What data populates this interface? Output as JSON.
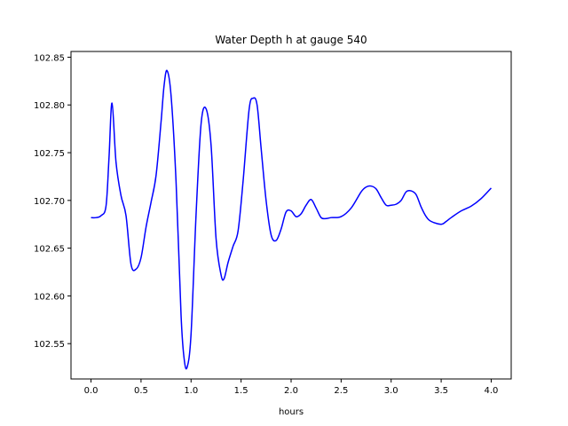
{
  "chart_data": {
    "type": "line",
    "title": "Water Depth h at gauge 540",
    "xlabel": "hours",
    "ylabel": "",
    "xlim": [
      -0.2,
      4.2
    ],
    "ylim": [
      102.513,
      102.856
    ],
    "grid": false,
    "legend": "none",
    "x_ticks": [
      "0.0",
      "0.5",
      "1.0",
      "1.5",
      "2.0",
      "2.5",
      "3.0",
      "3.5",
      "4.0"
    ],
    "y_ticks": [
      "102.55",
      "102.60",
      "102.65",
      "102.70",
      "102.75",
      "102.80",
      "102.85"
    ],
    "series": [
      {
        "color": "#0000ff",
        "x": [
          0.0,
          0.05,
          0.1,
          0.15,
          0.18,
          0.21,
          0.25,
          0.3,
          0.35,
          0.4,
          0.45,
          0.5,
          0.55,
          0.6,
          0.65,
          0.7,
          0.73,
          0.76,
          0.8,
          0.85,
          0.9,
          0.93,
          0.96,
          1.0,
          1.05,
          1.1,
          1.15,
          1.2,
          1.25,
          1.3,
          1.33,
          1.37,
          1.42,
          1.47,
          1.52,
          1.58,
          1.62,
          1.66,
          1.7,
          1.75,
          1.8,
          1.85,
          1.9,
          1.95,
          2.0,
          2.05,
          2.1,
          2.15,
          2.2,
          2.25,
          2.3,
          2.35,
          2.4,
          2.5,
          2.6,
          2.7,
          2.75,
          2.8,
          2.85,
          2.9,
          2.95,
          3.0,
          3.05,
          3.1,
          3.15,
          3.2,
          3.25,
          3.3,
          3.35,
          3.4,
          3.5,
          3.55,
          3.6,
          3.7,
          3.8,
          3.9,
          4.0
        ],
        "y": [
          102.682,
          102.682,
          102.684,
          102.694,
          102.745,
          102.802,
          102.74,
          102.705,
          102.684,
          102.633,
          102.628,
          102.64,
          102.672,
          102.698,
          102.726,
          102.782,
          102.82,
          102.836,
          102.81,
          102.72,
          102.58,
          102.535,
          102.525,
          102.56,
          102.685,
          102.78,
          102.796,
          102.758,
          102.66,
          102.622,
          102.618,
          102.635,
          102.652,
          102.668,
          102.72,
          102.795,
          102.807,
          102.8,
          102.755,
          102.7,
          102.664,
          102.658,
          102.67,
          102.688,
          102.689,
          102.683,
          102.686,
          102.695,
          102.701,
          102.692,
          102.682,
          102.681,
          102.682,
          102.683,
          102.692,
          102.709,
          102.714,
          102.715,
          102.712,
          102.703,
          102.695,
          102.695,
          102.696,
          102.7,
          102.709,
          102.71,
          102.706,
          102.693,
          102.683,
          102.678,
          102.675,
          102.678,
          102.682,
          102.689,
          102.694,
          102.702,
          102.713
        ]
      }
    ]
  }
}
